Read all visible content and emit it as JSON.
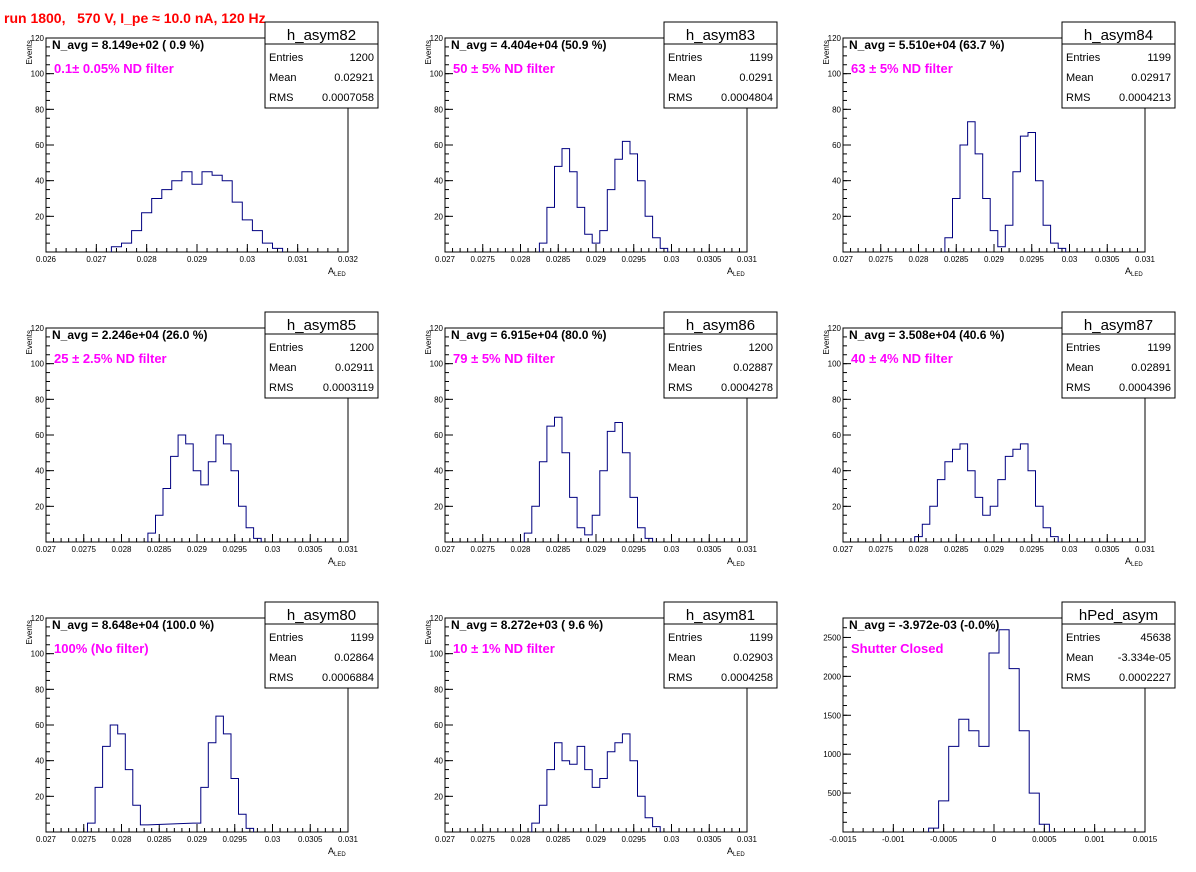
{
  "title": "run 1800,   570 V, I_pe ≈ 10.0 nA, 120 Hz",
  "stats_labels": {
    "entries": "Entries",
    "mean": "Mean",
    "rms": "RMS"
  },
  "colors": {
    "title": "#ff0000",
    "annotation": "#ff00ff",
    "histogram": "#000080",
    "frame": "#000000"
  },
  "chart_data": [
    {
      "type": "bar",
      "name": "h_asym82",
      "nav": "N_avg = 8.149e+02 ( 0.9 %)",
      "annotation": "0.1± 0.05% ND filter",
      "entries": "1200",
      "mean": "0.02921",
      "rms": "0.0007058",
      "xlabel": "A_LED",
      "ylabel": "Events",
      "xlim": [
        0.026,
        0.032
      ],
      "ylim": [
        0,
        120
      ],
      "xticks": [
        "0.026",
        "0.027",
        "0.028",
        "0.029",
        "0.03",
        "0.031",
        "0.032"
      ],
      "yticks": [
        "20",
        "40",
        "60",
        "80",
        "100",
        "120"
      ],
      "bins_x": [
        0.0274,
        0.0276,
        0.0278,
        0.028,
        0.0282,
        0.0284,
        0.0286,
        0.0288,
        0.029,
        0.0292,
        0.0294,
        0.0296,
        0.0298,
        0.03,
        0.0302,
        0.0304,
        0.0306
      ],
      "bins_y": [
        3,
        5,
        12,
        22,
        30,
        35,
        40,
        45,
        38,
        45,
        43,
        40,
        28,
        18,
        12,
        5,
        2
      ]
    },
    {
      "type": "bar",
      "name": "h_asym83",
      "nav": "N_avg = 4.404e+04 (50.9 %)",
      "annotation": "50 ± 5% ND filter",
      "entries": "1199",
      "mean": "0.0291",
      "rms": "0.0004804",
      "xlabel": "A_LED",
      "ylabel": "Events",
      "xlim": [
        0.027,
        0.031
      ],
      "ylim": [
        0,
        120
      ],
      "xticks": [
        "0.027",
        "0.0275",
        "0.028",
        "0.0285",
        "0.029",
        "0.0295",
        "0.03",
        "0.0305",
        "0.031"
      ],
      "yticks": [
        "20",
        "40",
        "60",
        "80",
        "100",
        "120"
      ],
      "bins_x": [
        0.0283,
        0.0284,
        0.0285,
        0.0286,
        0.0287,
        0.0288,
        0.0289,
        0.029,
        0.0291,
        0.0292,
        0.0293,
        0.0294,
        0.0295,
        0.0296,
        0.0297,
        0.0298,
        0.0299
      ],
      "bins_y": [
        5,
        25,
        48,
        58,
        45,
        25,
        10,
        5,
        12,
        35,
        52,
        62,
        55,
        40,
        20,
        8,
        2
      ]
    },
    {
      "type": "bar",
      "name": "h_asym84",
      "nav": "N_avg = 5.510e+04 (63.7 %)",
      "annotation": "63 ± 5% ND filter",
      "entries": "1199",
      "mean": "0.02917",
      "rms": "0.0004213",
      "xlabel": "A_LED",
      "ylabel": "Events",
      "xlim": [
        0.027,
        0.031
      ],
      "ylim": [
        0,
        120
      ],
      "xticks": [
        "0.027",
        "0.0275",
        "0.028",
        "0.0285",
        "0.029",
        "0.0295",
        "0.03",
        "0.0305",
        "0.031"
      ],
      "yticks": [
        "20",
        "40",
        "60",
        "80",
        "100",
        "120"
      ],
      "bins_x": [
        0.0284,
        0.0285,
        0.0286,
        0.0287,
        0.0288,
        0.0289,
        0.029,
        0.0291,
        0.0292,
        0.0293,
        0.0294,
        0.0295,
        0.0296,
        0.0297,
        0.0298,
        0.0299
      ],
      "bins_y": [
        8,
        30,
        60,
        73,
        55,
        30,
        12,
        3,
        15,
        45,
        65,
        67,
        40,
        15,
        5,
        2
      ]
    },
    {
      "type": "bar",
      "name": "h_asym85",
      "nav": "N_avg = 2.246e+04 (26.0 %)",
      "annotation": "25 ± 2.5% ND filter",
      "entries": "1200",
      "mean": "0.02911",
      "rms": "0.0003119",
      "xlabel": "A_LED",
      "ylabel": "Events",
      "xlim": [
        0.027,
        0.031
      ],
      "ylim": [
        0,
        120
      ],
      "xticks": [
        "0.027",
        "0.0275",
        "0.028",
        "0.0285",
        "0.029",
        "0.0295",
        "0.03",
        "0.0305",
        "0.031"
      ],
      "yticks": [
        "20",
        "40",
        "60",
        "80",
        "100",
        "120"
      ],
      "bins_x": [
        0.0284,
        0.0285,
        0.0286,
        0.0287,
        0.0288,
        0.0289,
        0.029,
        0.0291,
        0.0292,
        0.0293,
        0.0294,
        0.0295,
        0.0296,
        0.0297,
        0.0298
      ],
      "bins_y": [
        5,
        15,
        30,
        48,
        60,
        55,
        40,
        32,
        45,
        60,
        55,
        40,
        20,
        8,
        2
      ]
    },
    {
      "type": "bar",
      "name": "h_asym86",
      "nav": "N_avg = 6.915e+04 (80.0 %)",
      "annotation": "79 ± 5% ND filter",
      "entries": "1200",
      "mean": "0.02887",
      "rms": "0.0004278",
      "xlabel": "A_LED",
      "ylabel": "Events",
      "xlim": [
        0.027,
        0.031
      ],
      "ylim": [
        0,
        120
      ],
      "xticks": [
        "0.027",
        "0.0275",
        "0.028",
        "0.0285",
        "0.029",
        "0.0295",
        "0.03",
        "0.0305",
        "0.031"
      ],
      "yticks": [
        "20",
        "40",
        "60",
        "80",
        "100",
        "120"
      ],
      "bins_x": [
        0.0281,
        0.0282,
        0.0283,
        0.0284,
        0.0285,
        0.0286,
        0.0287,
        0.0288,
        0.0289,
        0.029,
        0.0291,
        0.0292,
        0.0293,
        0.0294,
        0.0295,
        0.0296,
        0.0297
      ],
      "bins_y": [
        5,
        20,
        45,
        65,
        70,
        50,
        25,
        8,
        4,
        15,
        40,
        62,
        67,
        50,
        25,
        8,
        2
      ]
    },
    {
      "type": "bar",
      "name": "h_asym87",
      "nav": "N_avg = 3.508e+04 (40.6 %)",
      "annotation": "40 ± 4% ND filter",
      "entries": "1199",
      "mean": "0.02891",
      "rms": "0.0004396",
      "xlabel": "A_LED",
      "ylabel": "Events",
      "xlim": [
        0.027,
        0.031
      ],
      "ylim": [
        0,
        120
      ],
      "xticks": [
        "0.027",
        "0.0275",
        "0.028",
        "0.0285",
        "0.029",
        "0.0295",
        "0.03",
        "0.0305",
        "0.031"
      ],
      "yticks": [
        "20",
        "40",
        "60",
        "80",
        "100",
        "120"
      ],
      "bins_x": [
        0.028,
        0.0281,
        0.0282,
        0.0283,
        0.0284,
        0.0285,
        0.0286,
        0.0287,
        0.0288,
        0.0289,
        0.029,
        0.0291,
        0.0292,
        0.0293,
        0.0294,
        0.0295,
        0.0296,
        0.0297,
        0.0298
      ],
      "bins_y": [
        3,
        10,
        20,
        35,
        45,
        52,
        55,
        40,
        25,
        15,
        20,
        35,
        48,
        52,
        55,
        40,
        20,
        8,
        3
      ]
    },
    {
      "type": "bar",
      "name": "h_asym80",
      "nav": "N_avg = 8.648e+04 (100.0 %)",
      "annotation": "100% (No filter)",
      "entries": "1199",
      "mean": "0.02864",
      "rms": "0.0006884",
      "xlabel": "A_LED",
      "ylabel": "Events",
      "xlim": [
        0.027,
        0.031
      ],
      "ylim": [
        0,
        120
      ],
      "xticks": [
        "0.027",
        "0.0275",
        "0.028",
        "0.0285",
        "0.029",
        "0.0295",
        "0.03",
        "0.0305",
        "0.031"
      ],
      "yticks": [
        "20",
        "40",
        "60",
        "80",
        "100",
        "120"
      ],
      "bins_x": [
        0.0276,
        0.0277,
        0.0278,
        0.0279,
        0.028,
        0.0281,
        0.0282,
        0.0283,
        0.029,
        0.0291,
        0.0292,
        0.0293,
        0.0294,
        0.0295,
        0.0296,
        0.0297
      ],
      "bins_y": [
        5,
        25,
        48,
        60,
        55,
        35,
        15,
        4,
        5,
        25,
        50,
        65,
        55,
        30,
        10,
        2
      ]
    },
    {
      "type": "bar",
      "name": "h_asym81",
      "nav": "N_avg = 8.272e+03 ( 9.6 %)",
      "annotation": "10 ± 1% ND filter",
      "entries": "1199",
      "mean": "0.02903",
      "rms": "0.0004258",
      "xlabel": "A_LED",
      "ylabel": "Events",
      "xlim": [
        0.027,
        0.031
      ],
      "ylim": [
        0,
        120
      ],
      "xticks": [
        "0.027",
        "0.0275",
        "0.028",
        "0.0285",
        "0.029",
        "0.0295",
        "0.03",
        "0.0305",
        "0.031"
      ],
      "yticks": [
        "20",
        "40",
        "60",
        "80",
        "100",
        "120"
      ],
      "bins_x": [
        0.0282,
        0.0283,
        0.0284,
        0.0285,
        0.0286,
        0.0287,
        0.0288,
        0.0289,
        0.029,
        0.0291,
        0.0292,
        0.0293,
        0.0294,
        0.0295,
        0.0296,
        0.0297,
        0.0298
      ],
      "bins_y": [
        5,
        15,
        35,
        50,
        40,
        38,
        48,
        35,
        25,
        30,
        45,
        50,
        55,
        40,
        20,
        8,
        3
      ]
    },
    {
      "type": "bar",
      "name": "hPed_asym",
      "nav": "N_avg = -3.972e-03 (-0.0%)",
      "annotation": "Shutter Closed",
      "entries": "45638",
      "mean": "-3.334e-05",
      "rms": "0.0002227",
      "xlabel": "",
      "ylabel": "",
      "xlim": [
        -0.0015,
        0.0015
      ],
      "ylim": [
        0,
        2750
      ],
      "xticks": [
        "-0.0015",
        "-0.001",
        "-0.0005",
        "0",
        "0.0005",
        "0.001",
        "0.0015"
      ],
      "yticks": [
        "500",
        "1000",
        "1500",
        "2000",
        "2500"
      ],
      "bins_x": [
        -0.0006,
        -0.0005,
        -0.0004,
        -0.0003,
        -0.0002,
        -0.0001,
        0.0,
        0.0001,
        0.0002,
        0.0003,
        0.0004,
        0.0005
      ],
      "bins_y": [
        50,
        400,
        1100,
        1450,
        1300,
        1100,
        2300,
        2600,
        2100,
        1300,
        500,
        100
      ]
    }
  ]
}
